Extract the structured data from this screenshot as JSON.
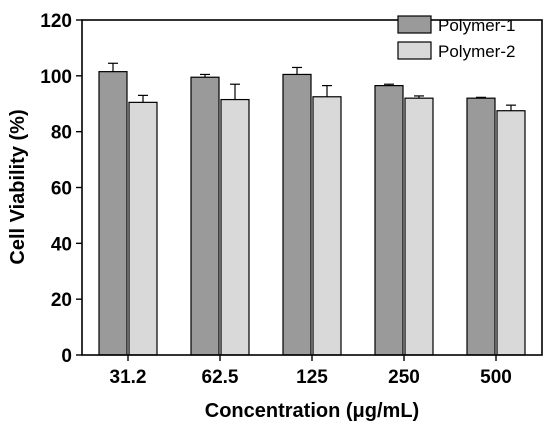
{
  "chart_data": {
    "type": "bar",
    "title": "",
    "xlabel": "Concentration (μg/mL)",
    "ylabel": "Cell Viability (%)",
    "categories": [
      "31.2",
      "62.5",
      "125",
      "250",
      "500"
    ],
    "ylim": [
      0,
      120
    ],
    "yticks": [
      0,
      20,
      40,
      60,
      80,
      100,
      120
    ],
    "grid": false,
    "legend_position": "top-right",
    "series": [
      {
        "name": "Polymer-1",
        "color": "#9a9a9a",
        "values": [
          101.5,
          99.5,
          100.5,
          96.5,
          92.0
        ],
        "errors": [
          3.0,
          1.0,
          2.5,
          0.5,
          0.3
        ]
      },
      {
        "name": "Polymer-2",
        "color": "#d9d9d9",
        "values": [
          90.5,
          91.5,
          92.5,
          92.0,
          87.5
        ],
        "errors": [
          2.5,
          5.5,
          4.0,
          0.8,
          2.0
        ]
      }
    ]
  }
}
